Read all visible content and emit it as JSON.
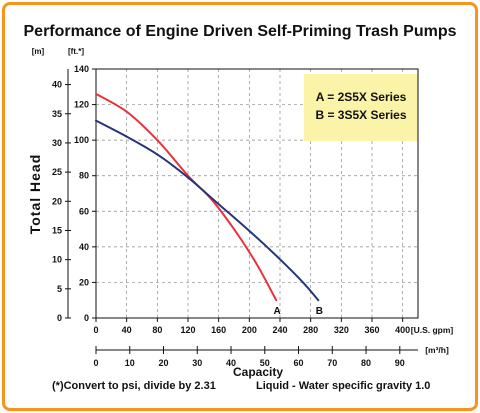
{
  "chart_data": {
    "type": "line",
    "title": "Performance of Engine Driven Self-Priming Trash Pumps",
    "ylabel": "Total Head",
    "xlabel": "Capacity",
    "y_unit_left": "[m]",
    "y_unit_right": "[ft.*]",
    "x_unit_top": "[U.S. gpm]",
    "x_unit_bottom": "[m³/h]",
    "xlim_gpm": [
      0,
      420
    ],
    "ylim_ft": [
      0,
      140
    ],
    "x_ticks_gpm": [
      "0",
      "40",
      "80",
      "120",
      "160",
      "200",
      "240",
      "280",
      "320",
      "360",
      "400"
    ],
    "x_ticks_m3h": [
      "0",
      "10",
      "20",
      "30",
      "40",
      "50",
      "60",
      "70",
      "80",
      "90"
    ],
    "y_ticks_ft": [
      "0",
      "20",
      "40",
      "60",
      "80",
      "100",
      "120",
      "140"
    ],
    "y_ticks_m": [
      "0",
      "5",
      "10",
      "15",
      "20",
      "25",
      "30",
      "35",
      "40"
    ],
    "grid": true,
    "legend": {
      "position": "top-right",
      "entries": [
        "A = 2S5X Series",
        "B = 3S5X Series"
      ],
      "background": "#fbf3a7"
    },
    "series": [
      {
        "name": "A",
        "color": "#e8333c",
        "x": [
          0,
          40,
          80,
          120,
          150,
          180,
          210,
          235
        ],
        "y": [
          126,
          116,
          100,
          80,
          67,
          50,
          30,
          10
        ]
      },
      {
        "name": "B",
        "color": "#27347a",
        "x": [
          0,
          40,
          80,
          120,
          160,
          200,
          240,
          270,
          290
        ],
        "y": [
          111,
          102,
          92,
          79,
          64,
          49,
          33,
          20,
          10
        ]
      }
    ],
    "footnote_left": "(*)Convert to psi, divide by 2.31",
    "footnote_right": "Liquid - Water specific gravity 1.0"
  }
}
